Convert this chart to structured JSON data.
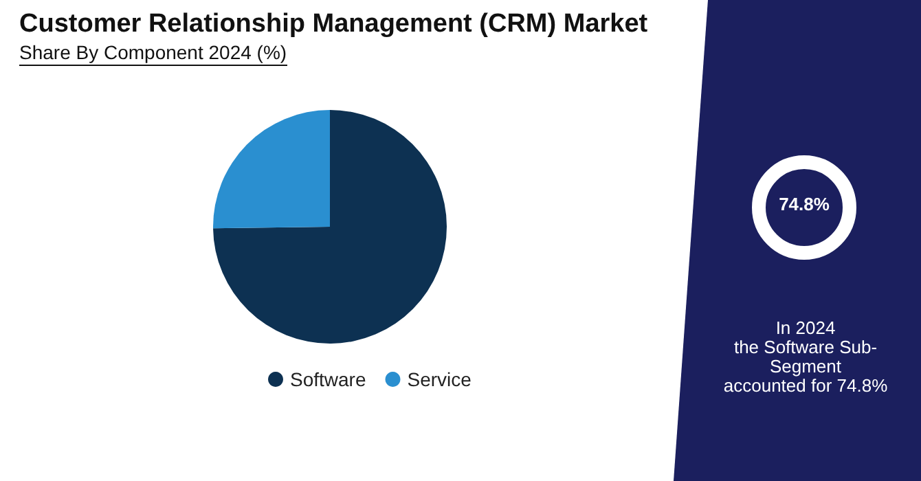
{
  "chart_data": {
    "type": "pie",
    "title": "Customer Relationship Management (CRM) Market",
    "subtitle": "Share By Component 2024 (%)",
    "categories": [
      "Software",
      "Service"
    ],
    "values": [
      74.8,
      25.2
    ],
    "colors": [
      "#0d3152",
      "#2a8fd0"
    ],
    "legend": "bottom",
    "annotations": [
      "74.8%",
      "In 2024\nthe Software Sub-Segment\naccounted for 74.8%"
    ]
  }
}
